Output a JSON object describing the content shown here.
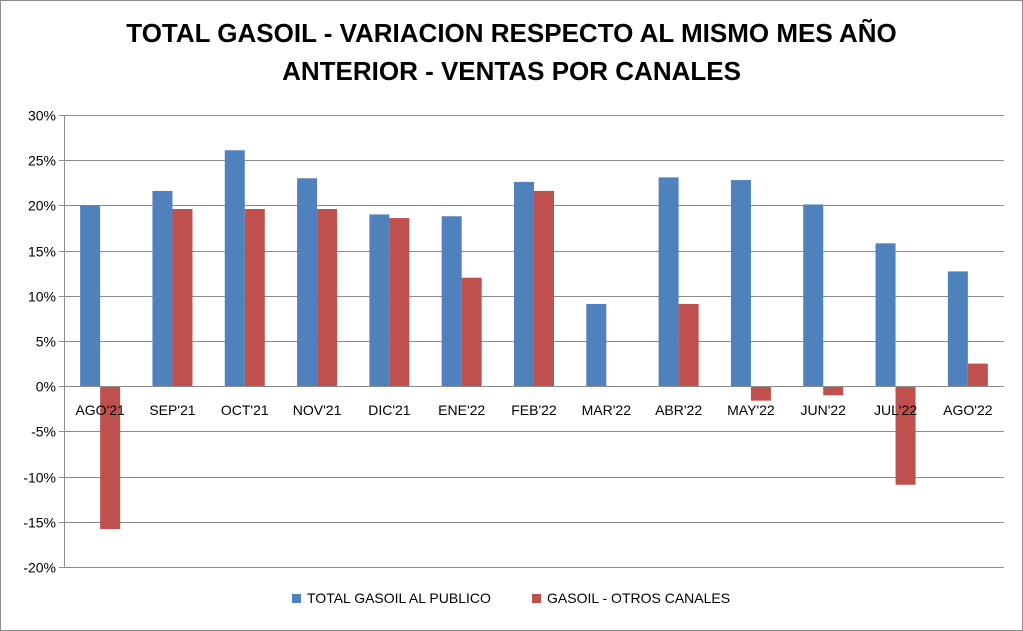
{
  "chart_data": {
    "type": "bar",
    "title_lines": [
      "TOTAL GASOIL - VARIACION RESPECTO AL MISMO MES AÑO",
      "ANTERIOR - VENTAS POR CANALES"
    ],
    "categories": [
      "AGO'21",
      "SEP'21",
      "OCT'21",
      "NOV'21",
      "DIC'21",
      "ENE'22",
      "FEB'22",
      "MAR'22",
      "ABR'22",
      "MAY'22",
      "JUN'22",
      "JUL'22",
      "AGO'22"
    ],
    "series": [
      {
        "name": "TOTAL GASOIL AL PUBLICO",
        "color": "#4f81bd",
        "values": [
          20.0,
          21.6,
          26.1,
          23.0,
          19.0,
          18.8,
          22.6,
          9.1,
          23.1,
          22.8,
          20.1,
          15.8,
          12.7
        ]
      },
      {
        "name": "GASOIL - OTROS CANALES",
        "color": "#c0504d",
        "values": [
          -15.8,
          19.6,
          19.6,
          19.6,
          18.6,
          12.0,
          21.6,
          0.0,
          9.1,
          -1.6,
          -1.0,
          -10.9,
          2.5
        ]
      }
    ],
    "ylim": [
      -20,
      30
    ],
    "ytick_step": 5,
    "ytick_labels": [
      "30%",
      "25%",
      "20%",
      "15%",
      "10%",
      "5%",
      "0%",
      "-5%",
      "-10%",
      "-15%",
      "-20%"
    ],
    "xlabel": "",
    "ylabel": "",
    "grid": true,
    "legend_position": "bottom"
  }
}
